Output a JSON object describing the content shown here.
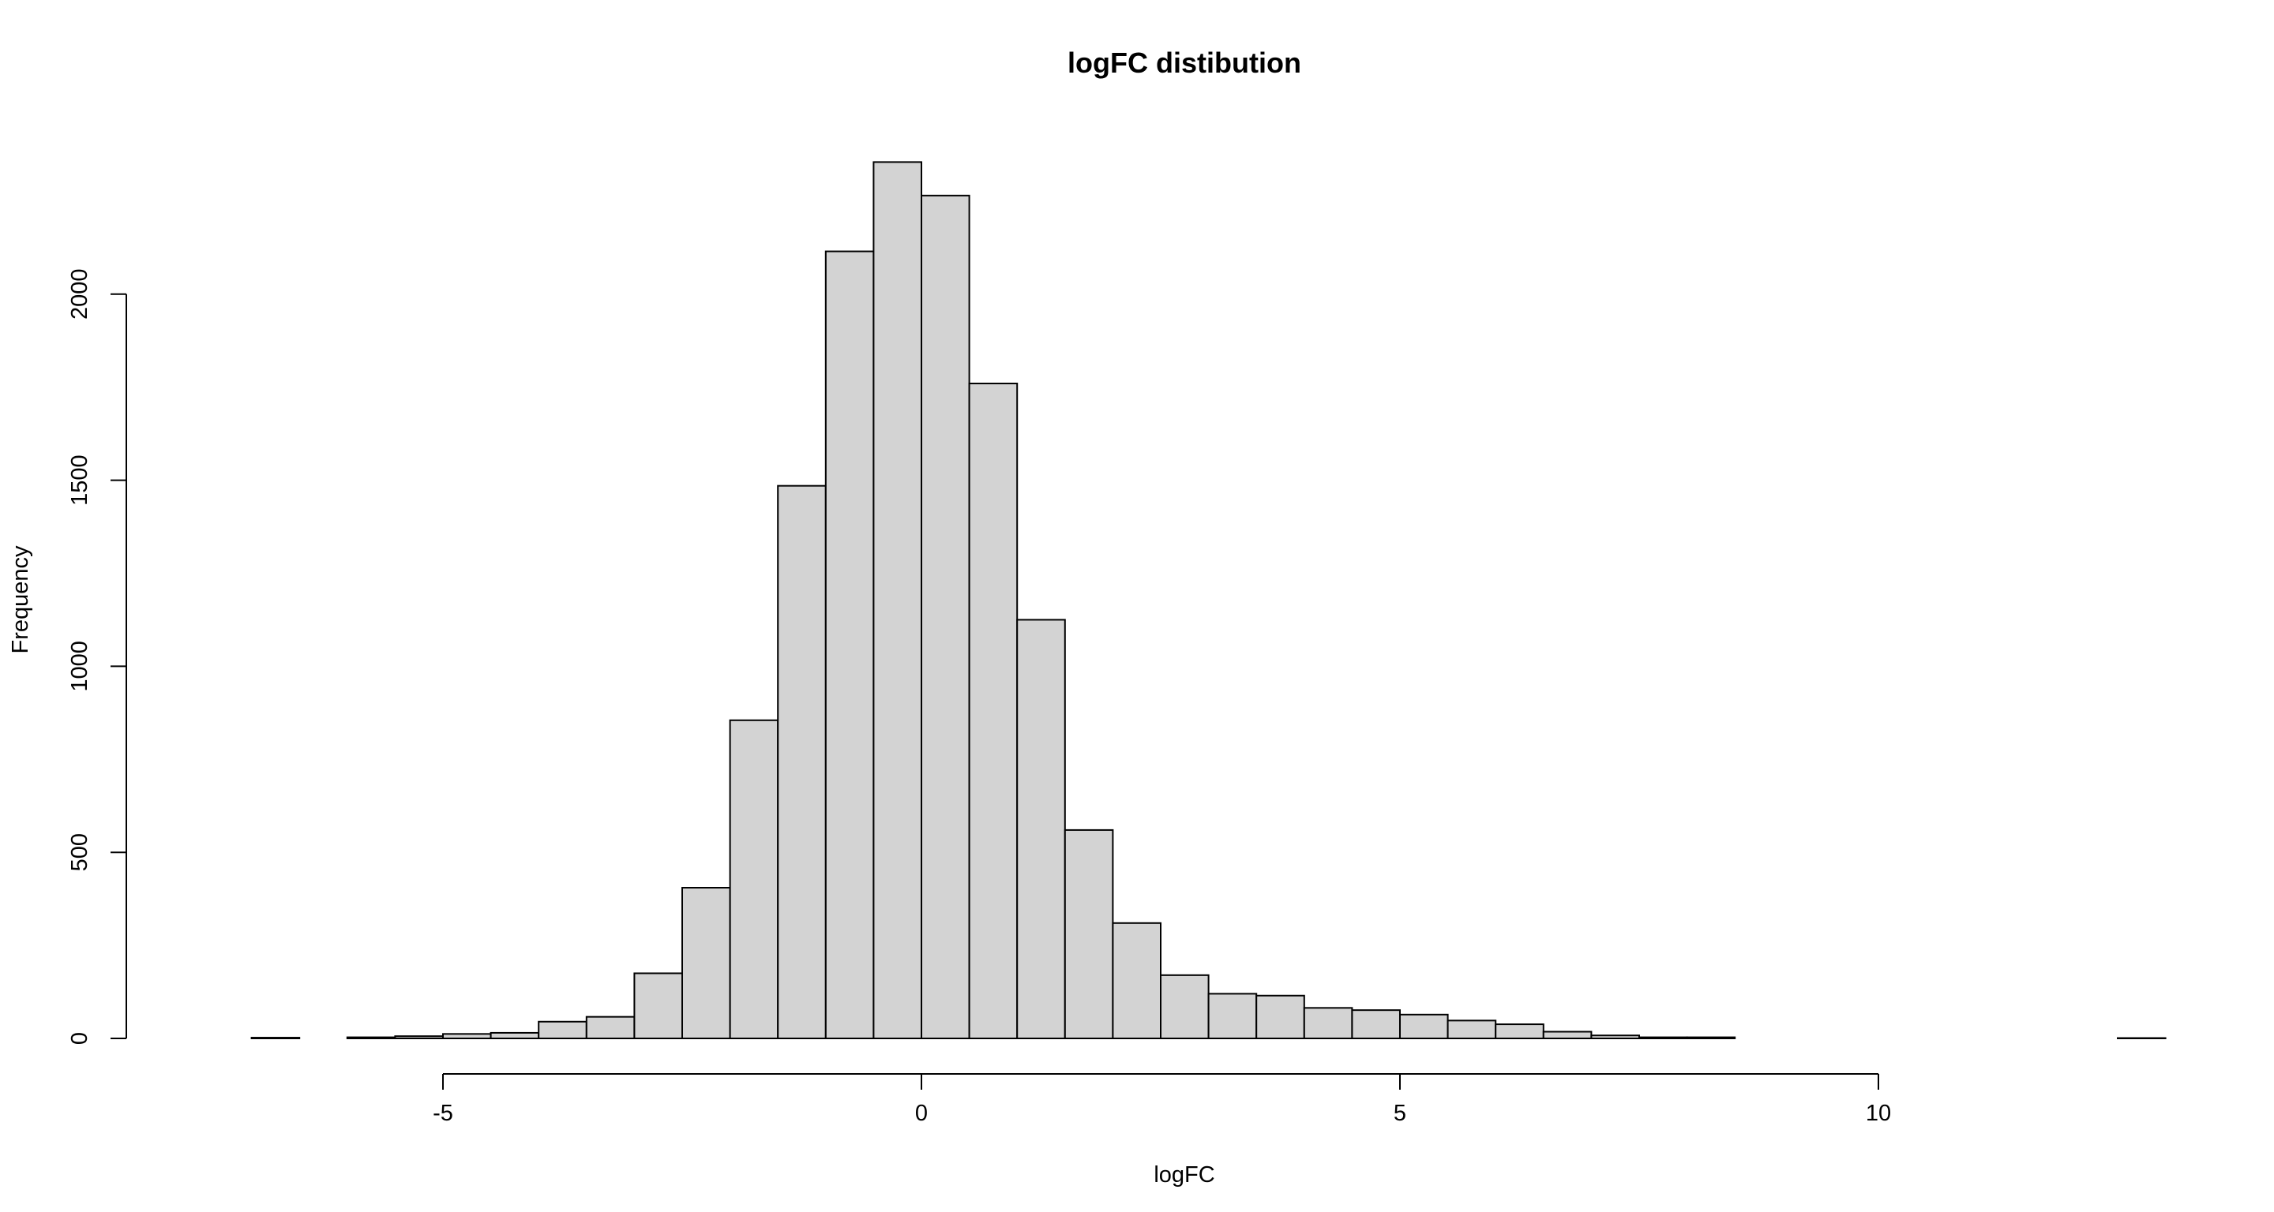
{
  "chart_data": {
    "type": "bar",
    "title": "logFC distibution",
    "xlabel": "logFC",
    "ylabel": "Frequency",
    "bin_width": 0.5,
    "bin_start": -7.5,
    "values": [
      0,
      2,
      0,
      3,
      6,
      12,
      15,
      45,
      58,
      175,
      405,
      855,
      1485,
      2115,
      2355,
      2265,
      1760,
      1125,
      560,
      310,
      170,
      120,
      115,
      82,
      76,
      64,
      48,
      38,
      18,
      8,
      3,
      3,
      0,
      0,
      0,
      0,
      0,
      0,
      0,
      0,
      1
    ],
    "x_ticks": [
      -5,
      0,
      5,
      10
    ],
    "y_ticks": [
      0,
      500,
      1000,
      1500,
      2000
    ],
    "xlim": [
      -7.5,
      13.0
    ],
    "ylim": [
      0,
      2355
    ],
    "grid": false,
    "colors": {
      "bar_fill": "#d3d3d3",
      "bar_stroke": "#000000"
    }
  }
}
